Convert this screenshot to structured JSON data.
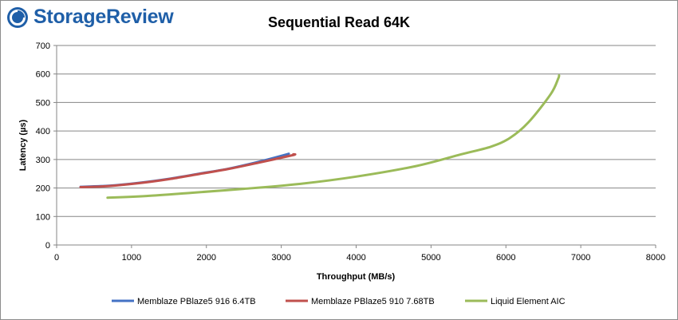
{
  "brand": {
    "name": "StorageReview"
  },
  "chart_data": {
    "type": "line",
    "title": "Sequential Read 64K",
    "xlabel": "Throughput (MB/s)",
    "ylabel": "Latency (µs)",
    "xlim": [
      0,
      8000
    ],
    "ylim": [
      0,
      700
    ],
    "xticks": [
      0,
      1000,
      2000,
      3000,
      4000,
      5000,
      6000,
      7000,
      8000
    ],
    "yticks": [
      0,
      100,
      200,
      300,
      400,
      500,
      600,
      700
    ],
    "grid": "horizontal",
    "legend_position": "bottom",
    "series": [
      {
        "name": "Memblaze PBlaze5 916 6.4TB",
        "color": "#4472c4",
        "x": [
          320,
          700,
          1100,
          1500,
          1900,
          2300,
          2700,
          3100
        ],
        "y": [
          204,
          208,
          218,
          232,
          250,
          268,
          292,
          320
        ]
      },
      {
        "name": "Memblaze PBlaze5 910 7.68TB",
        "color": "#c0504d",
        "x": [
          320,
          700,
          1100,
          1500,
          1900,
          2300,
          2700,
          3150,
          3160
        ],
        "y": [
          203,
          207,
          217,
          231,
          249,
          267,
          289,
          315,
          318
        ]
      },
      {
        "name": "Liquid Element AIC",
        "color": "#9bbb59",
        "x": [
          680,
          1200,
          1800,
          2500,
          3200,
          4000,
          4800,
          5400,
          5800,
          6050,
          6300,
          6600,
          6700,
          6710
        ],
        "y": [
          166,
          172,
          183,
          197,
          213,
          240,
          277,
          318,
          345,
          375,
          430,
          530,
          585,
          595
        ]
      }
    ]
  }
}
